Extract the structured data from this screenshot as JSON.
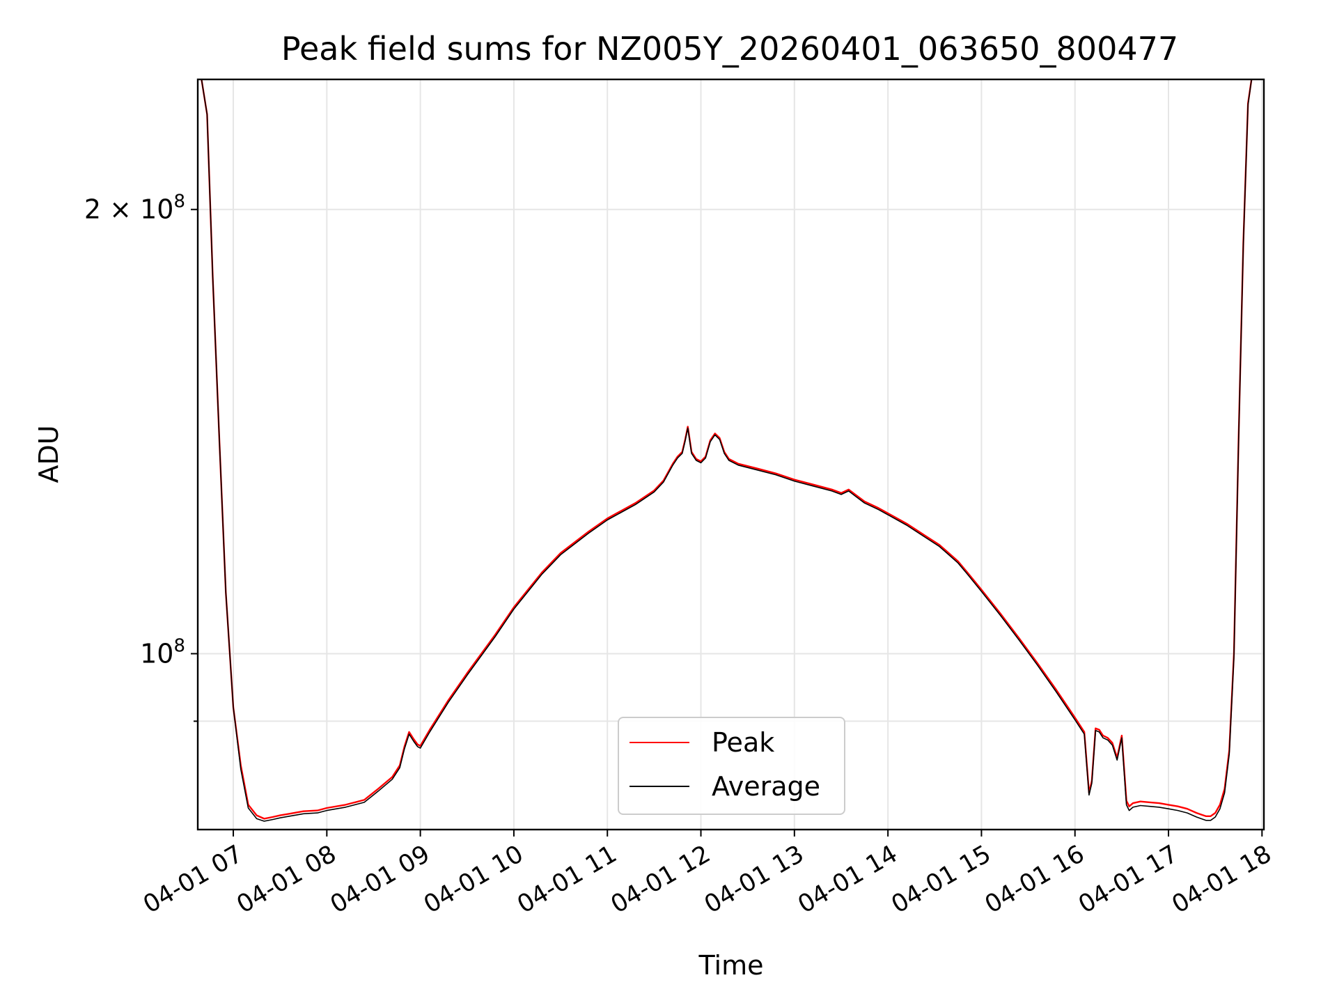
{
  "chart_data": {
    "type": "line",
    "title": "Peak field sums for NZ005Y_20260401_063650_800477",
    "xlabel": "Time",
    "ylabel": "ADU",
    "yscale": "log",
    "xlim": [
      6.62,
      18.02
    ],
    "ylim": [
      76000000,
      245000000
    ],
    "grid": true,
    "legend_position": "lower-center",
    "x_unit": "hours since 2026-04-01 00:00",
    "xticks": [
      {
        "value": 7,
        "label": "04-01 07"
      },
      {
        "value": 8,
        "label": "04-01 08"
      },
      {
        "value": 9,
        "label": "04-01 09"
      },
      {
        "value": 10,
        "label": "04-01 10"
      },
      {
        "value": 11,
        "label": "04-01 11"
      },
      {
        "value": 12,
        "label": "04-01 12"
      },
      {
        "value": 13,
        "label": "04-01 13"
      },
      {
        "value": 14,
        "label": "04-01 14"
      },
      {
        "value": 15,
        "label": "04-01 15"
      },
      {
        "value": 16,
        "label": "04-01 16"
      },
      {
        "value": 17,
        "label": "04-01 17"
      },
      {
        "value": 18,
        "label": "04-01 18"
      }
    ],
    "yticks": [
      {
        "value": 100000000,
        "base": "10",
        "mantissa": "",
        "exponent": "8"
      },
      {
        "value": 200000000,
        "base": "10",
        "mantissa": "2 × ",
        "exponent": "8"
      }
    ],
    "y_minor_ticks": [
      90000000
    ],
    "series": [
      {
        "name": "Peak",
        "color": "#ff0000",
        "x": [
          6.66,
          6.72,
          6.78,
          6.85,
          6.92,
          7.0,
          7.08,
          7.16,
          7.25,
          7.33,
          7.42,
          7.5,
          7.6,
          7.75,
          7.9,
          8.0,
          8.2,
          8.4,
          8.55,
          8.7,
          8.78,
          8.83,
          8.88,
          8.93,
          8.97,
          9.0,
          9.1,
          9.3,
          9.5,
          9.8,
          10.0,
          10.3,
          10.5,
          10.8,
          11.0,
          11.3,
          11.5,
          11.6,
          11.7,
          11.75,
          11.8,
          11.83,
          11.86,
          11.9,
          11.95,
          12.0,
          12.05,
          12.1,
          12.15,
          12.2,
          12.25,
          12.3,
          12.4,
          12.6,
          12.8,
          13.0,
          13.2,
          13.4,
          13.5,
          13.58,
          13.65,
          13.75,
          13.9,
          14.0,
          14.2,
          14.4,
          14.55,
          14.65,
          14.75,
          14.85,
          15.0,
          15.2,
          15.4,
          15.6,
          15.8,
          16.0,
          16.1,
          16.15,
          16.18,
          16.22,
          16.26,
          16.3,
          16.35,
          16.4,
          16.45,
          16.5,
          16.55,
          16.58,
          16.62,
          16.7,
          16.8,
          16.9,
          17.0,
          17.1,
          17.2,
          17.3,
          17.35,
          17.4,
          17.45,
          17.5,
          17.55,
          17.6,
          17.65,
          17.7,
          17.75,
          17.8,
          17.85,
          17.9
        ],
        "values": [
          245000000,
          232000000,
          180000000,
          140000000,
          110000000,
          92000000,
          84000000,
          79000000,
          77700000,
          77300000,
          77500000,
          77700000,
          77900000,
          78200000,
          78300000,
          78600000,
          79000000,
          79600000,
          81000000,
          82500000,
          84000000,
          86500000,
          88500000,
          87500000,
          86800000,
          86600000,
          88800000,
          93000000,
          97000000,
          103000000,
          107500000,
          113500000,
          117000000,
          121000000,
          123500000,
          126500000,
          129000000,
          131000000,
          134500000,
          136000000,
          137000000,
          139500000,
          142500000,
          137000000,
          135500000,
          135000000,
          136000000,
          139500000,
          141000000,
          140000000,
          137000000,
          135500000,
          134500000,
          133500000,
          132500000,
          131200000,
          130200000,
          129200000,
          128500000,
          129200000,
          128200000,
          126800000,
          125500000,
          124500000,
          122500000,
          120200000,
          118500000,
          117000000,
          115500000,
          113500000,
          110500000,
          106500000,
          102500000,
          98500000,
          94500000,
          90500000,
          88500000,
          80500000,
          82000000,
          89000000,
          88800000,
          88000000,
          87700000,
          87000000,
          85000000,
          88000000,
          79500000,
          78800000,
          79200000,
          79400000,
          79300000,
          79200000,
          79000000,
          78800000,
          78500000,
          78000000,
          77800000,
          77600000,
          77600000,
          78000000,
          79000000,
          81000000,
          86000000,
          100000000,
          140000000,
          190000000,
          236000000,
          248000000
        ]
      },
      {
        "name": "Average",
        "color": "#000000",
        "x": [
          6.66,
          6.72,
          6.78,
          6.85,
          6.92,
          7.0,
          7.08,
          7.16,
          7.25,
          7.33,
          7.42,
          7.5,
          7.6,
          7.75,
          7.9,
          8.0,
          8.2,
          8.4,
          8.55,
          8.7,
          8.78,
          8.83,
          8.88,
          8.93,
          8.97,
          9.0,
          9.1,
          9.3,
          9.5,
          9.8,
          10.0,
          10.3,
          10.5,
          10.8,
          11.0,
          11.3,
          11.5,
          11.6,
          11.7,
          11.75,
          11.8,
          11.83,
          11.86,
          11.9,
          11.95,
          12.0,
          12.05,
          12.1,
          12.15,
          12.2,
          12.25,
          12.3,
          12.4,
          12.6,
          12.8,
          13.0,
          13.2,
          13.4,
          13.5,
          13.58,
          13.65,
          13.75,
          13.9,
          14.0,
          14.2,
          14.4,
          14.55,
          14.65,
          14.75,
          14.85,
          15.0,
          15.2,
          15.4,
          15.6,
          15.8,
          16.0,
          16.1,
          16.15,
          16.18,
          16.22,
          16.26,
          16.3,
          16.35,
          16.4,
          16.45,
          16.5,
          16.55,
          16.58,
          16.62,
          16.7,
          16.8,
          16.9,
          17.0,
          17.1,
          17.2,
          17.3,
          17.35,
          17.4,
          17.45,
          17.5,
          17.55,
          17.6,
          17.65,
          17.7,
          17.75,
          17.8,
          17.85,
          17.9
        ],
        "values": [
          245000000,
          232000000,
          180000000,
          140000000,
          110000000,
          92000000,
          83500000,
          78600000,
          77300000,
          77000000,
          77200000,
          77400000,
          77600000,
          77900000,
          78000000,
          78300000,
          78700000,
          79300000,
          80700000,
          82200000,
          83700000,
          86200000,
          88200000,
          87200000,
          86500000,
          86300000,
          88500000,
          92700000,
          96700000,
          102700000,
          107200000,
          113200000,
          116700000,
          120700000,
          123200000,
          126200000,
          128700000,
          130700000,
          134200000,
          135700000,
          136700000,
          139200000,
          142200000,
          136700000,
          135200000,
          134700000,
          135700000,
          139200000,
          140700000,
          139700000,
          136700000,
          135200000,
          134200000,
          133200000,
          132200000,
          130900000,
          129900000,
          128900000,
          128200000,
          128900000,
          127900000,
          126500000,
          125200000,
          124200000,
          122200000,
          119900000,
          118200000,
          116700000,
          115200000,
          113200000,
          110200000,
          106200000,
          102200000,
          98200000,
          94200000,
          90200000,
          88200000,
          80200000,
          81700000,
          88700000,
          88500000,
          87700000,
          87400000,
          86700000,
          84700000,
          87700000,
          79000000,
          78300000,
          78700000,
          78900000,
          78800000,
          78700000,
          78500000,
          78300000,
          78000000,
          77500000,
          77300000,
          77100000,
          77100000,
          77500000,
          78500000,
          80500000,
          85500000,
          99500000,
          139500000,
          189500000,
          235500000,
          248000000
        ]
      }
    ]
  }
}
